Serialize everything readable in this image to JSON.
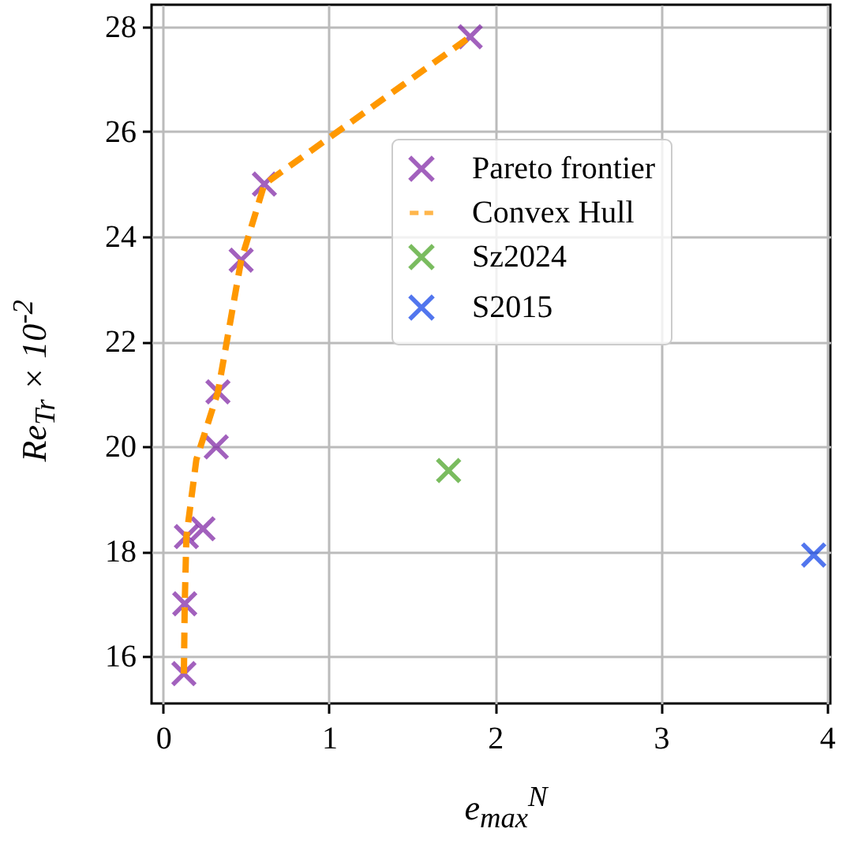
{
  "chart_data": {
    "type": "scatter",
    "xlabel": "e$_{max}$$^{N}$",
    "ylabel": "Re$_{Tr}$ × 10$^{-2}$",
    "xlim": [
      -0.07,
      4.02
    ],
    "ylim": [
      15.1,
      28.42
    ],
    "xticks": [
      0,
      1,
      2,
      3,
      4
    ],
    "yticks": [
      16,
      18,
      20,
      22,
      24,
      26,
      28
    ],
    "grid": true,
    "legend": "right",
    "marker": "cross",
    "series": [
      {
        "name": "Pareto frontier",
        "type": "scatter",
        "color": "#7b1fa2",
        "x": [
          0.125,
          0.13,
          0.14,
          0.24,
          0.32,
          0.33,
          0.47,
          0.61,
          1.85
        ],
        "values": [
          15.67,
          17.0,
          18.28,
          18.43,
          19.99,
          21.04,
          23.55,
          25.0,
          27.81
        ]
      },
      {
        "name": "Convex Hull",
        "type": "line",
        "color": "#ff9800",
        "line_style": "dashed",
        "marker": "none",
        "x": [
          0.125,
          0.13,
          0.14,
          0.2,
          0.33,
          0.47,
          0.61,
          1.85
        ],
        "values": [
          15.67,
          17.0,
          18.28,
          19.75,
          21.04,
          23.55,
          25.0,
          27.81
        ]
      },
      {
        "name": "Sz2024",
        "type": "scatter",
        "color": "#43a01c",
        "x": [
          1.72
        ],
        "values": [
          19.54
        ]
      },
      {
        "name": "S2015",
        "type": "scatter",
        "color": "#0a3de8",
        "x": [
          3.92
        ],
        "values": [
          17.93
        ]
      }
    ]
  }
}
